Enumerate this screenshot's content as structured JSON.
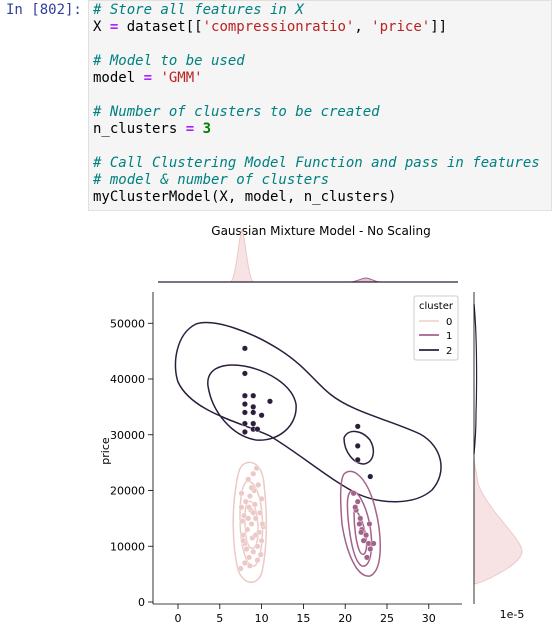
{
  "prompt": "In [802]:",
  "code": {
    "l1": "# Store all features in X",
    "l2a": "X",
    "l2b": " = ",
    "l2c": "dataset[[",
    "l2d": "'compressionratio'",
    "l2e": ", ",
    "l2f": "'price'",
    "l2g": "]]",
    "l4": "# Model to be used",
    "l5a": "model",
    "l5b": " = ",
    "l5c": "'GMM'",
    "l7": "# Number of clusters to be created",
    "l8a": "n_clusters",
    "l8b": " = ",
    "l8c": "3",
    "l10": "# Call Clustering Model Function and pass in features",
    "l11": "# model & number of clusters",
    "l12": "myClusterModel(X, model, n_clusters)"
  },
  "chart_data": {
    "type": "scatter",
    "title": "Gaussian Mixture Model - No Scaling",
    "xlabel": "",
    "ylabel": "price",
    "xticks": [
      "0",
      "5",
      "10",
      "15",
      "20",
      "25",
      "30"
    ],
    "yticks": [
      "0",
      "10000",
      "20000",
      "30000",
      "40000",
      "50000"
    ],
    "xlim": [
      -2,
      34
    ],
    "ylim": [
      -1000,
      56000
    ],
    "marginal_note": "1e-5",
    "legend": {
      "title": "cluster",
      "placement": "top-right",
      "entries": [
        {
          "label": "0",
          "color": "#f0d5d0"
        },
        {
          "label": "1",
          "color": "#a3628a"
        },
        {
          "label": "2",
          "color": "#2d1e3e"
        }
      ]
    },
    "series": [
      {
        "name": "0",
        "color": "#ecc9c6",
        "points": [
          [
            7.5,
            6000
          ],
          [
            8,
            7000
          ],
          [
            8.5,
            8000
          ],
          [
            9,
            9000
          ],
          [
            9.5,
            10000
          ],
          [
            10,
            11000
          ],
          [
            7.8,
            12000
          ],
          [
            8.3,
            13000
          ],
          [
            8.8,
            14000
          ],
          [
            9.3,
            15000
          ],
          [
            9.8,
            16000
          ],
          [
            7.6,
            17000
          ],
          [
            8.1,
            18000
          ],
          [
            8.6,
            19000
          ],
          [
            9.1,
            20000
          ],
          [
            9.6,
            21000
          ],
          [
            8.4,
            22000
          ],
          [
            9,
            23000
          ],
          [
            9.4,
            24000
          ],
          [
            7.7,
            14500
          ],
          [
            8.2,
            9500
          ],
          [
            8.9,
            11500
          ],
          [
            9.7,
            12500
          ],
          [
            10.2,
            13500
          ],
          [
            7.9,
            15500
          ],
          [
            8.7,
            16500
          ],
          [
            9.2,
            17500
          ],
          [
            10,
            18500
          ],
          [
            8,
            10500
          ],
          [
            9.5,
            7500
          ],
          [
            8.6,
            6500
          ],
          [
            9.9,
            8500
          ],
          [
            7.6,
            19500
          ],
          [
            8.8,
            20500
          ],
          [
            9.3,
            12000
          ],
          [
            8.4,
            15000
          ],
          [
            9,
            16000
          ],
          [
            7.8,
            11000
          ],
          [
            10.1,
            14000
          ],
          [
            8.5,
            17000
          ]
        ]
      },
      {
        "name": "1",
        "color": "#a3628a",
        "points": [
          [
            21,
            19500
          ],
          [
            21.5,
            18000
          ],
          [
            21.3,
            16500
          ],
          [
            21.8,
            15000
          ],
          [
            22,
            13000
          ],
          [
            22.5,
            12000
          ],
          [
            22.8,
            10500
          ],
          [
            23,
            9500
          ],
          [
            22.2,
            11000
          ],
          [
            21.7,
            14000
          ],
          [
            23.4,
            10500
          ],
          [
            22.6,
            8000
          ],
          [
            21.2,
            17000
          ],
          [
            22.9,
            14000
          ],
          [
            21.9,
            12500
          ]
        ]
      },
      {
        "name": "2",
        "color": "#2d1e3e",
        "points": [
          [
            8,
            45500
          ],
          [
            8,
            41000
          ],
          [
            8,
            37000
          ],
          [
            8,
            35500
          ],
          [
            8,
            34000
          ],
          [
            8,
            32000
          ],
          [
            8,
            30500
          ],
          [
            9,
            37000
          ],
          [
            9,
            35000
          ],
          [
            9,
            34000
          ],
          [
            9,
            32000
          ],
          [
            9,
            31000
          ],
          [
            9.5,
            31000
          ],
          [
            10,
            33500
          ],
          [
            11,
            36000
          ],
          [
            21.5,
            31500
          ],
          [
            21.5,
            28000
          ],
          [
            21.5,
            25500
          ],
          [
            23,
            22500
          ]
        ]
      }
    ],
    "marginal_x": {
      "series": [
        "0",
        "1",
        "2"
      ]
    },
    "marginal_y": {
      "series": [
        "0",
        "1",
        "2"
      ]
    }
  }
}
